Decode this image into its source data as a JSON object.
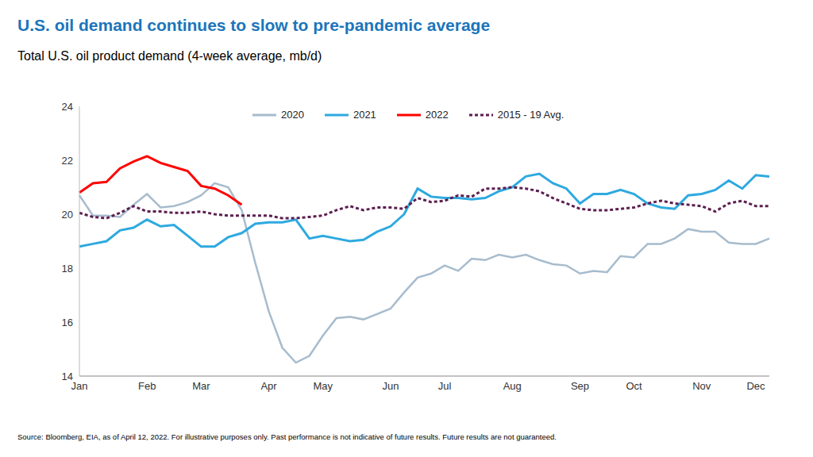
{
  "chart_data": {
    "type": "line",
    "title": "U.S. oil demand continues to slow to pre-pandemic average",
    "subtitle": "Total U.S. oil product demand (4-week average, mb/d)",
    "source": "Source: Bloomberg, EIA, as of April 12, 2022. For illustrative purposes only. Past performance is not indicative of future results. Future results are not guaranteed.",
    "categories": [
      "Jan",
      null,
      null,
      null,
      null,
      "Feb",
      null,
      null,
      null,
      "Mar",
      null,
      null,
      null,
      null,
      "Apr",
      null,
      null,
      null,
      "May",
      null,
      null,
      null,
      null,
      "Jun",
      null,
      null,
      null,
      "Jul",
      null,
      null,
      null,
      null,
      "Aug",
      null,
      null,
      null,
      null,
      "Sep",
      null,
      null,
      null,
      "Oct",
      null,
      null,
      null,
      null,
      "Nov",
      null,
      null,
      null,
      "Dec",
      null
    ],
    "series": [
      {
        "name": "2020",
        "color": "#a7bccd",
        "line_style": "solid",
        "values": [
          20.7,
          19.95,
          19.95,
          19.9,
          20.35,
          20.75,
          20.25,
          20.3,
          20.45,
          20.7,
          21.15,
          21.0,
          20.15,
          18.2,
          16.4,
          15.05,
          14.5,
          14.75,
          15.5,
          16.15,
          16.2,
          16.1,
          16.3,
          16.5,
          17.1,
          17.65,
          17.8,
          18.1,
          17.9,
          18.35,
          18.3,
          18.5,
          18.4,
          18.5,
          18.3,
          18.15,
          18.1,
          17.8,
          17.9,
          17.85,
          18.45,
          18.4,
          18.9,
          18.9,
          19.1,
          19.45,
          19.35,
          19.35,
          18.95,
          18.9,
          18.9,
          19.1
        ]
      },
      {
        "name": "2021",
        "color": "#2ea9e0",
        "line_style": "solid",
        "values": [
          18.8,
          18.9,
          19.0,
          19.4,
          19.5,
          19.8,
          19.55,
          19.6,
          19.2,
          18.8,
          18.8,
          19.15,
          19.3,
          19.65,
          19.7,
          19.7,
          19.8,
          19.1,
          19.2,
          19.1,
          19.0,
          19.05,
          19.35,
          19.55,
          20.0,
          20.95,
          20.65,
          20.6,
          20.6,
          20.55,
          20.6,
          20.85,
          21.0,
          21.4,
          21.5,
          21.15,
          20.95,
          20.4,
          20.75,
          20.75,
          20.9,
          20.75,
          20.4,
          20.25,
          20.2,
          20.7,
          20.75,
          20.9,
          21.25,
          20.95,
          21.45,
          21.4
        ]
      },
      {
        "name": "2022",
        "color": "#ff0000",
        "line_style": "solid",
        "values": [
          20.8,
          21.15,
          21.2,
          21.7,
          21.95,
          22.15,
          21.9,
          21.75,
          21.6,
          21.05,
          20.95,
          20.7,
          20.35,
          null,
          null,
          null,
          null,
          null,
          null,
          null,
          null,
          null,
          null,
          null,
          null,
          null,
          null,
          null,
          null,
          null,
          null,
          null,
          null,
          null,
          null,
          null,
          null,
          null,
          null,
          null,
          null,
          null,
          null,
          null,
          null,
          null,
          null,
          null,
          null,
          null,
          null,
          null
        ]
      },
      {
        "name": "2015 - 19 Avg.",
        "color": "#5c1f50",
        "line_style": "dashed",
        "values": [
          20.05,
          19.9,
          19.85,
          20.05,
          20.3,
          20.1,
          20.1,
          20.05,
          20.05,
          20.1,
          20.0,
          19.95,
          19.95,
          19.95,
          19.95,
          19.85,
          19.85,
          19.9,
          19.95,
          20.15,
          20.3,
          20.15,
          20.25,
          20.25,
          20.2,
          20.6,
          20.45,
          20.5,
          20.7,
          20.65,
          20.95,
          20.95,
          21.0,
          20.95,
          20.85,
          20.6,
          20.4,
          20.2,
          20.15,
          20.15,
          20.2,
          20.25,
          20.4,
          20.5,
          20.4,
          20.35,
          20.3,
          20.1,
          20.4,
          20.5,
          20.3,
          20.3
        ]
      }
    ],
    "ylim": [
      14,
      24
    ],
    "yticks": [
      14,
      16,
      18,
      20,
      22,
      24
    ],
    "grid": false,
    "legend": "top"
  }
}
